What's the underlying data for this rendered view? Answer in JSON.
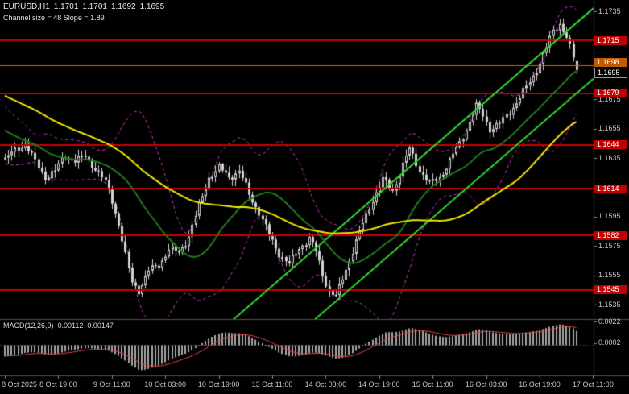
{
  "window": {
    "symbol": "EURUSD,H1",
    "ohlc_open": "1.1701",
    "ohlc_high": "1.1701",
    "ohlc_low": "1.1692",
    "ohlc_close": "1.1695",
    "channel_info": "Channel size = 48 Slope = 1.89"
  },
  "macd_panel": {
    "label": "MACD(12,26,9)",
    "macd_value": "0.00112",
    "signal_value": "0.00147",
    "axis_ticks": [
      "0.0022",
      "0.0002"
    ]
  },
  "colors": {
    "background": "#000000",
    "candle": "#d2d2d2",
    "level_line": "#c80000",
    "level_badge": "#c00000",
    "ask_line": "#c8641e",
    "ask_badge": "#c05a00",
    "bid_badge_bg": "#000000",
    "bid_badge_border": "#999999",
    "channel": "#2ed52e",
    "ma_fast": "#1e7a1e",
    "ma_slow": "#f2e400",
    "bollinger": "#c03cc0",
    "macd_hist": "#a6a6a6",
    "macd_signal": "#e04545",
    "separator": "#4f4f4f",
    "axis_text": "#c6c6c6"
  },
  "chart_data": {
    "type": "candlestick",
    "title": "EURUSD,H1",
    "symbol": "EURUSD",
    "timeframe": "H1",
    "ohlc_current": {
      "open": 1.1701,
      "high": 1.1701,
      "low": 1.1692,
      "close": 1.1695
    },
    "bar_count": 172,
    "bars_per_label": 16,
    "time_labels": [
      "8 Oct 2025",
      "8 Oct 19:00",
      "9 Oct 11:00",
      "10 Oct 03:00",
      "10 Oct 19:00",
      "13 Oct 11:00",
      "14 Oct 03:00",
      "14 Oct 19:00",
      "15 Oct 11:00",
      "16 Oct 03:00",
      "16 Oct 19:00",
      "17 Oct 11:00"
    ],
    "price_axis_ticks": [
      1.1735,
      1.1675,
      1.1655,
      1.1635,
      1.1595,
      1.1575,
      1.1555,
      1.1535
    ],
    "levels": [
      1.1715,
      1.1679,
      1.1644,
      1.1614,
      1.1582,
      1.1545
    ],
    "ask_line": 1.1698,
    "bid_price": 1.1695,
    "visible_price_range": [
      1.1514,
      1.1743
    ],
    "channel": {
      "size_pips": 48,
      "slope": 1.89,
      "slope_price_per_bar": 0.000197,
      "upper_price_at_last_bar": 1.1727,
      "width_price": 0.0048
    },
    "indicators": {
      "ma_fast": {
        "type": "sma",
        "period": 24
      },
      "ma_slow": {
        "type": "sma",
        "period": 60
      },
      "bollinger": {
        "period": 20,
        "deviation": 2
      },
      "macd": {
        "fast": 12,
        "slow": 26,
        "signal": 9,
        "value": 0.00112,
        "signal_value": 0.00147
      }
    },
    "candle_wiggle": [
      0.00018,
      0.00013
    ],
    "prehistory_anchors": [
      [
        -70,
        1.1712
      ],
      [
        -45,
        1.17
      ],
      [
        -20,
        1.1668
      ],
      [
        -1,
        1.1637
      ]
    ],
    "close_path_anchors": [
      [
        0,
        1.1634
      ],
      [
        3,
        1.164
      ],
      [
        6,
        1.1645
      ],
      [
        9,
        1.1632
      ],
      [
        12,
        1.1622
      ],
      [
        15,
        1.1626
      ],
      [
        18,
        1.1637
      ],
      [
        21,
        1.1633
      ],
      [
        24,
        1.1636
      ],
      [
        27,
        1.1628
      ],
      [
        30,
        1.1618
      ],
      [
        32,
        1.1606
      ],
      [
        34,
        1.159
      ],
      [
        36,
        1.1568
      ],
      [
        38,
        1.155
      ],
      [
        40,
        1.1545
      ],
      [
        43,
        1.1558
      ],
      [
        46,
        1.1562
      ],
      [
        49,
        1.1573
      ],
      [
        52,
        1.157
      ],
      [
        55,
        1.1582
      ],
      [
        58,
        1.1602
      ],
      [
        61,
        1.1622
      ],
      [
        64,
        1.1628
      ],
      [
        67,
        1.1622
      ],
      [
        70,
        1.1626
      ],
      [
        73,
        1.161
      ],
      [
        76,
        1.1598
      ],
      [
        79,
        1.1582
      ],
      [
        82,
        1.157
      ],
      [
        85,
        1.1562
      ],
      [
        88,
        1.1574
      ],
      [
        91,
        1.158
      ],
      [
        93,
        1.1571
      ],
      [
        95,
        1.1556
      ],
      [
        97,
        1.1544
      ],
      [
        99,
        1.154
      ],
      [
        101,
        1.1553
      ],
      [
        104,
        1.1572
      ],
      [
        107,
        1.159
      ],
      [
        110,
        1.1607
      ],
      [
        113,
        1.162
      ],
      [
        116,
        1.1613
      ],
      [
        119,
        1.163
      ],
      [
        121,
        1.1641
      ],
      [
        124,
        1.1627
      ],
      [
        127,
        1.1617
      ],
      [
        130,
        1.1622
      ],
      [
        133,
        1.1633
      ],
      [
        136,
        1.1645
      ],
      [
        139,
        1.166
      ],
      [
        141,
        1.167
      ],
      [
        143,
        1.1664
      ],
      [
        145,
        1.1655
      ],
      [
        148,
        1.1658
      ],
      [
        151,
        1.1667
      ],
      [
        154,
        1.1676
      ],
      [
        157,
        1.1687
      ],
      [
        160,
        1.17
      ],
      [
        162,
        1.171
      ],
      [
        164,
        1.1722
      ],
      [
        166,
        1.1727
      ],
      [
        168,
        1.1717
      ],
      [
        170,
        1.1703
      ],
      [
        171,
        1.1697
      ]
    ]
  }
}
